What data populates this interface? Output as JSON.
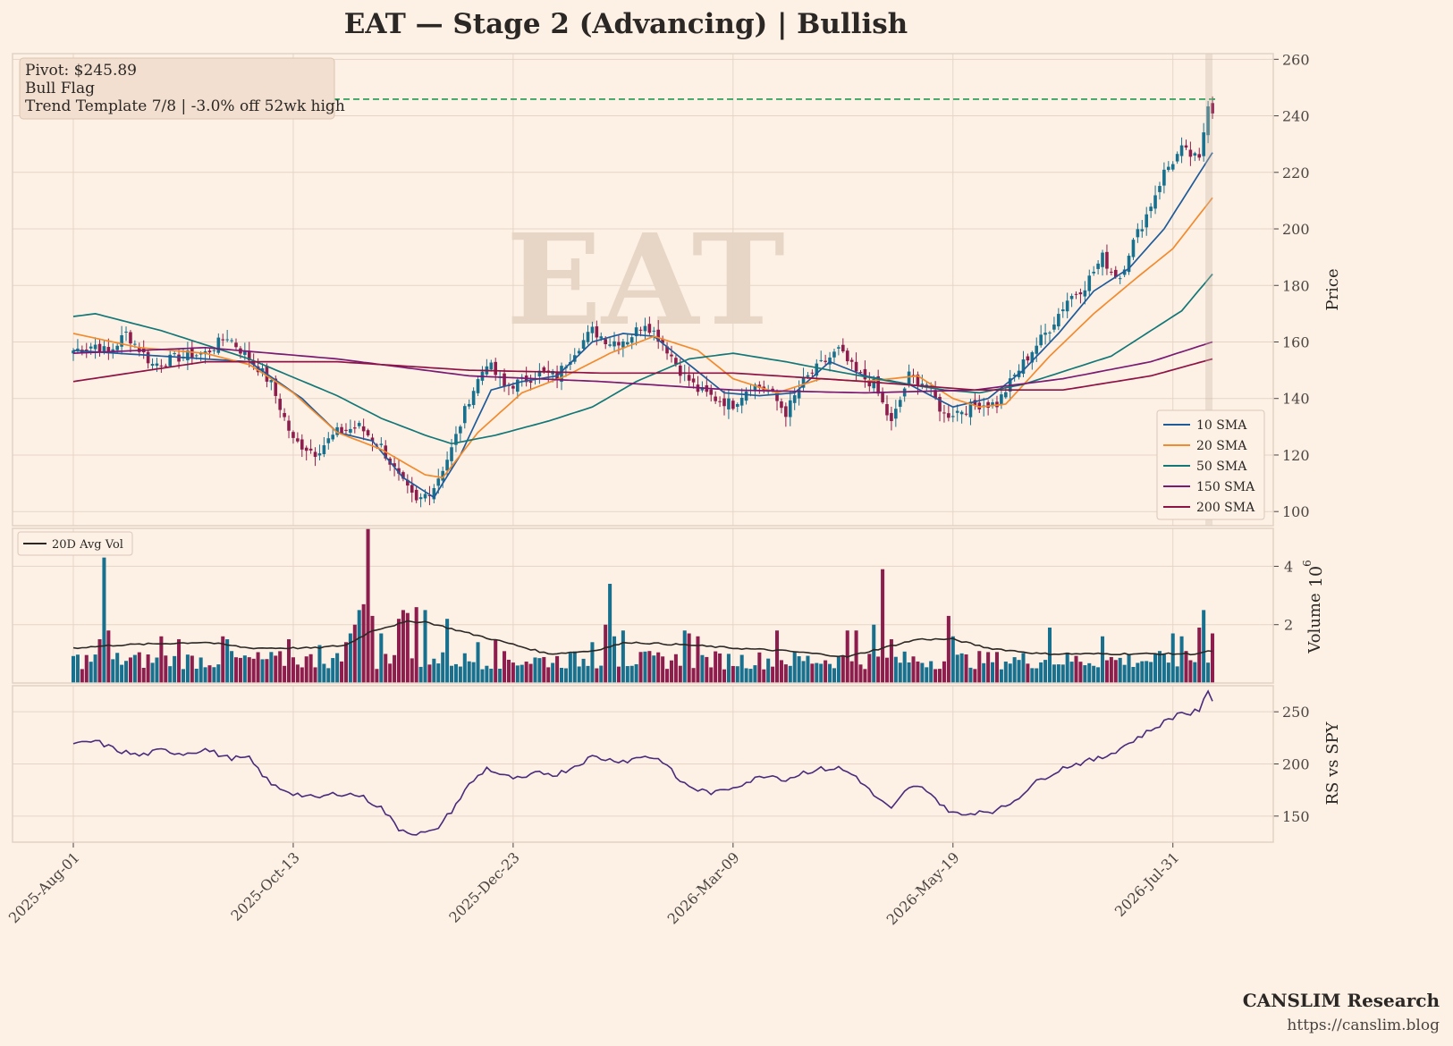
{
  "title": "EAT  —  Stage 2 (Advancing)  |  Bullish",
  "watermark": "EAT",
  "info_box": {
    "line1": "Pivot: $245.89",
    "line2": "Bull Flag",
    "line3": "Trend Template 7/8  |  -3.0% off 52wk high"
  },
  "footer": {
    "brand": "CANSLIM Research",
    "url": "https://canslim.blog"
  },
  "colors": {
    "background": "#fdf1e6",
    "grid": "#e6d5c6",
    "up": "#17708e",
    "down": "#8d1d4c",
    "sma10": "#1f5b99",
    "sma20": "#f28a2e",
    "sma50": "#137777",
    "sma150": "#7a1a72",
    "sma200": "#8f1245",
    "pivot": "#1e9950",
    "avgvol": "#2b2724",
    "rs": "#4a2a7a"
  },
  "chart_data": [
    {
      "type": "candlestick",
      "panel": "price",
      "ylabel": "Price",
      "ylim": [
        95,
        262
      ],
      "yticks": [
        100,
        120,
        140,
        160,
        180,
        200,
        220,
        240,
        260
      ],
      "x_tick_labels": [
        "2025-Aug-01",
        "2025-Oct-13",
        "2025-Dec-23",
        "2026-Mar-09",
        "2026-May-19",
        "2026-Jul-31"
      ],
      "x_tick_index": [
        0,
        50,
        100,
        150,
        200,
        250
      ],
      "n_bars": 260,
      "pivot": 245.89,
      "close_anchors": [
        [
          0,
          157
        ],
        [
          5,
          159
        ],
        [
          8,
          156
        ],
        [
          12,
          163
        ],
        [
          18,
          152
        ],
        [
          25,
          155
        ],
        [
          30,
          156
        ],
        [
          35,
          162
        ],
        [
          42,
          151
        ],
        [
          45,
          145
        ],
        [
          50,
          125
        ],
        [
          55,
          121
        ],
        [
          60,
          128
        ],
        [
          65,
          130
        ],
        [
          70,
          123
        ],
        [
          74,
          112
        ],
        [
          78,
          103
        ],
        [
          82,
          109
        ],
        [
          86,
          122
        ],
        [
          90,
          140
        ],
        [
          94,
          153
        ],
        [
          98,
          144
        ],
        [
          102,
          146
        ],
        [
          106,
          149
        ],
        [
          110,
          148
        ],
        [
          114,
          157
        ],
        [
          118,
          164
        ],
        [
          122,
          160
        ],
        [
          126,
          161
        ],
        [
          130,
          167
        ],
        [
          134,
          160
        ],
        [
          138,
          150
        ],
        [
          142,
          143
        ],
        [
          146,
          140
        ],
        [
          150,
          138
        ],
        [
          154,
          145
        ],
        [
          158,
          143
        ],
        [
          162,
          135
        ],
        [
          166,
          146
        ],
        [
          170,
          152
        ],
        [
          174,
          157
        ],
        [
          178,
          149
        ],
        [
          182,
          145
        ],
        [
          186,
          131
        ],
        [
          190,
          148
        ],
        [
          194,
          145
        ],
        [
          198,
          134
        ],
        [
          202,
          136
        ],
        [
          206,
          138
        ],
        [
          210,
          138
        ],
        [
          214,
          148
        ],
        [
          218,
          157
        ],
        [
          222,
          165
        ],
        [
          226,
          175
        ],
        [
          230,
          180
        ],
        [
          234,
          190
        ],
        [
          236,
          185
        ],
        [
          238,
          183
        ],
        [
          240,
          192
        ],
        [
          244,
          205
        ],
        [
          248,
          220
        ],
        [
          252,
          228
        ],
        [
          256,
          224
        ],
        [
          258,
          245
        ],
        [
          259,
          242
        ]
      ],
      "sma10_anchors": [
        [
          0,
          157
        ],
        [
          20,
          155
        ],
        [
          40,
          153
        ],
        [
          52,
          140
        ],
        [
          60,
          128
        ],
        [
          68,
          125
        ],
        [
          75,
          112
        ],
        [
          82,
          105
        ],
        [
          88,
          120
        ],
        [
          95,
          143
        ],
        [
          102,
          146
        ],
        [
          110,
          148
        ],
        [
          118,
          160
        ],
        [
          125,
          163
        ],
        [
          132,
          162
        ],
        [
          140,
          152
        ],
        [
          148,
          142
        ],
        [
          156,
          141
        ],
        [
          164,
          142
        ],
        [
          172,
          153
        ],
        [
          180,
          148
        ],
        [
          190,
          145
        ],
        [
          200,
          137
        ],
        [
          208,
          140
        ],
        [
          216,
          150
        ],
        [
          224,
          163
        ],
        [
          232,
          178
        ],
        [
          240,
          186
        ],
        [
          248,
          200
        ],
        [
          259,
          227
        ]
      ],
      "sma20_anchors": [
        [
          0,
          163
        ],
        [
          15,
          158
        ],
        [
          30,
          156
        ],
        [
          40,
          152
        ],
        [
          50,
          142
        ],
        [
          60,
          128
        ],
        [
          70,
          122
        ],
        [
          80,
          113
        ],
        [
          84,
          112
        ],
        [
          92,
          128
        ],
        [
          102,
          142
        ],
        [
          112,
          148
        ],
        [
          122,
          156
        ],
        [
          132,
          162
        ],
        [
          142,
          157
        ],
        [
          150,
          147
        ],
        [
          160,
          142
        ],
        [
          170,
          147
        ],
        [
          180,
          146
        ],
        [
          192,
          148
        ],
        [
          200,
          140
        ],
        [
          206,
          137
        ],
        [
          212,
          138
        ],
        [
          222,
          155
        ],
        [
          232,
          170
        ],
        [
          242,
          183
        ],
        [
          250,
          193
        ],
        [
          259,
          211
        ]
      ],
      "sma50_anchors": [
        [
          0,
          169
        ],
        [
          5,
          170
        ],
        [
          20,
          164
        ],
        [
          40,
          154
        ],
        [
          60,
          141
        ],
        [
          70,
          133
        ],
        [
          80,
          127
        ],
        [
          86,
          124
        ],
        [
          96,
          127
        ],
        [
          108,
          132
        ],
        [
          118,
          137
        ],
        [
          128,
          146
        ],
        [
          140,
          154
        ],
        [
          150,
          156
        ],
        [
          162,
          153
        ],
        [
          172,
          150
        ],
        [
          186,
          146
        ],
        [
          198,
          143
        ],
        [
          206,
          142
        ],
        [
          216,
          145
        ],
        [
          226,
          150
        ],
        [
          236,
          155
        ],
        [
          244,
          163
        ],
        [
          252,
          171
        ],
        [
          259,
          184
        ]
      ],
      "sma150_anchors": [
        [
          0,
          156
        ],
        [
          30,
          158
        ],
        [
          60,
          154
        ],
        [
          90,
          148
        ],
        [
          120,
          146
        ],
        [
          150,
          143
        ],
        [
          180,
          142
        ],
        [
          205,
          143
        ],
        [
          225,
          147
        ],
        [
          245,
          153
        ],
        [
          259,
          160
        ]
      ],
      "sma200_anchors": [
        [
          0,
          146
        ],
        [
          30,
          153
        ],
        [
          60,
          153
        ],
        [
          90,
          150
        ],
        [
          120,
          149
        ],
        [
          150,
          149
        ],
        [
          180,
          146
        ],
        [
          205,
          143
        ],
        [
          225,
          143
        ],
        [
          245,
          148
        ],
        [
          259,
          154
        ]
      ],
      "legend": [
        "10 SMA",
        "20 SMA",
        "50 SMA",
        "150 SMA",
        "200 SMA"
      ],
      "legend_position": "lower-right"
    },
    {
      "type": "bar",
      "panel": "volume",
      "ylabel": "Volume",
      "y_multiplier": "10",
      "y_multiplier_exp": "6",
      "ylim": [
        0,
        5.3
      ],
      "yticks": [
        2,
        4
      ],
      "base_volume": 0.85,
      "spikes": [
        [
          7,
          4.3
        ],
        [
          8,
          1.8
        ],
        [
          6,
          1.5
        ],
        [
          20,
          1.6
        ],
        [
          24,
          1.5
        ],
        [
          34,
          1.6
        ],
        [
          35,
          1.5
        ],
        [
          49,
          1.5
        ],
        [
          56,
          1.3
        ],
        [
          62,
          1.4
        ],
        [
          63,
          1.7
        ],
        [
          64,
          2.0
        ],
        [
          65,
          2.5
        ],
        [
          66,
          2.7
        ],
        [
          67,
          5.3
        ],
        [
          68,
          2.3
        ],
        [
          70,
          1.7
        ],
        [
          74,
          2.2
        ],
        [
          75,
          2.5
        ],
        [
          76,
          2.4
        ],
        [
          78,
          2.6
        ],
        [
          80,
          2.5
        ],
        [
          85,
          2.2
        ],
        [
          92,
          1.4
        ],
        [
          96,
          1.5
        ],
        [
          118,
          1.4
        ],
        [
          121,
          2.0
        ],
        [
          122,
          3.4
        ],
        [
          123,
          1.6
        ],
        [
          125,
          1.8
        ],
        [
          139,
          1.8
        ],
        [
          140,
          1.7
        ],
        [
          142,
          1.6
        ],
        [
          160,
          1.8
        ],
        [
          176,
          1.8
        ],
        [
          178,
          1.8
        ],
        [
          182,
          2.0
        ],
        [
          184,
          3.9
        ],
        [
          186,
          1.5
        ],
        [
          199,
          2.3
        ],
        [
          200,
          1.6
        ],
        [
          222,
          1.9
        ],
        [
          234,
          1.6
        ],
        [
          250,
          1.7
        ],
        [
          252,
          1.6
        ],
        [
          256,
          1.9
        ],
        [
          257,
          2.5
        ],
        [
          259,
          1.7
        ]
      ],
      "avg_anchors": [
        [
          0,
          1.2
        ],
        [
          10,
          1.3
        ],
        [
          30,
          1.4
        ],
        [
          40,
          1.2
        ],
        [
          55,
          1.2
        ],
        [
          62,
          1.3
        ],
        [
          68,
          1.8
        ],
        [
          76,
          2.1
        ],
        [
          80,
          2.1
        ],
        [
          90,
          1.7
        ],
        [
          98,
          1.4
        ],
        [
          108,
          1.0
        ],
        [
          118,
          1.1
        ],
        [
          126,
          1.4
        ],
        [
          140,
          1.3
        ],
        [
          150,
          1.2
        ],
        [
          162,
          1.1
        ],
        [
          176,
          0.9
        ],
        [
          184,
          1.2
        ],
        [
          192,
          1.5
        ],
        [
          200,
          1.5
        ],
        [
          208,
          1.2
        ],
        [
          220,
          1.0
        ],
        [
          232,
          1.0
        ],
        [
          245,
          1.0
        ],
        [
          255,
          1.0
        ],
        [
          259,
          1.1
        ]
      ],
      "legend": [
        "20D Avg Vol"
      ],
      "legend_position": "top-left"
    },
    {
      "type": "line",
      "panel": "relative-strength",
      "ylabel": "RS vs SPY",
      "ylim": [
        125,
        275
      ],
      "yticks": [
        150,
        200,
        250
      ],
      "rs_anchors": [
        [
          0,
          218
        ],
        [
          5,
          222
        ],
        [
          10,
          213
        ],
        [
          15,
          208
        ],
        [
          20,
          213
        ],
        [
          25,
          210
        ],
        [
          30,
          214
        ],
        [
          35,
          206
        ],
        [
          40,
          205
        ],
        [
          45,
          180
        ],
        [
          50,
          172
        ],
        [
          55,
          167
        ],
        [
          60,
          172
        ],
        [
          65,
          170
        ],
        [
          70,
          158
        ],
        [
          74,
          138
        ],
        [
          78,
          133
        ],
        [
          82,
          135
        ],
        [
          86,
          155
        ],
        [
          90,
          180
        ],
        [
          94,
          196
        ],
        [
          98,
          188
        ],
        [
          102,
          185
        ],
        [
          106,
          192
        ],
        [
          110,
          190
        ],
        [
          114,
          198
        ],
        [
          118,
          207
        ],
        [
          122,
          204
        ],
        [
          126,
          203
        ],
        [
          130,
          208
        ],
        [
          134,
          203
        ],
        [
          138,
          183
        ],
        [
          142,
          175
        ],
        [
          146,
          172
        ],
        [
          150,
          178
        ],
        [
          154,
          184
        ],
        [
          158,
          190
        ],
        [
          162,
          185
        ],
        [
          166,
          192
        ],
        [
          170,
          195
        ],
        [
          174,
          196
        ],
        [
          178,
          188
        ],
        [
          182,
          170
        ],
        [
          186,
          156
        ],
        [
          190,
          178
        ],
        [
          194,
          176
        ],
        [
          198,
          158
        ],
        [
          202,
          150
        ],
        [
          206,
          155
        ],
        [
          210,
          155
        ],
        [
          214,
          165
        ],
        [
          218,
          180
        ],
        [
          222,
          190
        ],
        [
          226,
          198
        ],
        [
          230,
          202
        ],
        [
          234,
          206
        ],
        [
          238,
          215
        ],
        [
          242,
          225
        ],
        [
          246,
          235
        ],
        [
          250,
          245
        ],
        [
          252,
          250
        ],
        [
          254,
          248
        ],
        [
          256,
          252
        ],
        [
          258,
          268
        ],
        [
          259,
          262
        ]
      ]
    }
  ]
}
